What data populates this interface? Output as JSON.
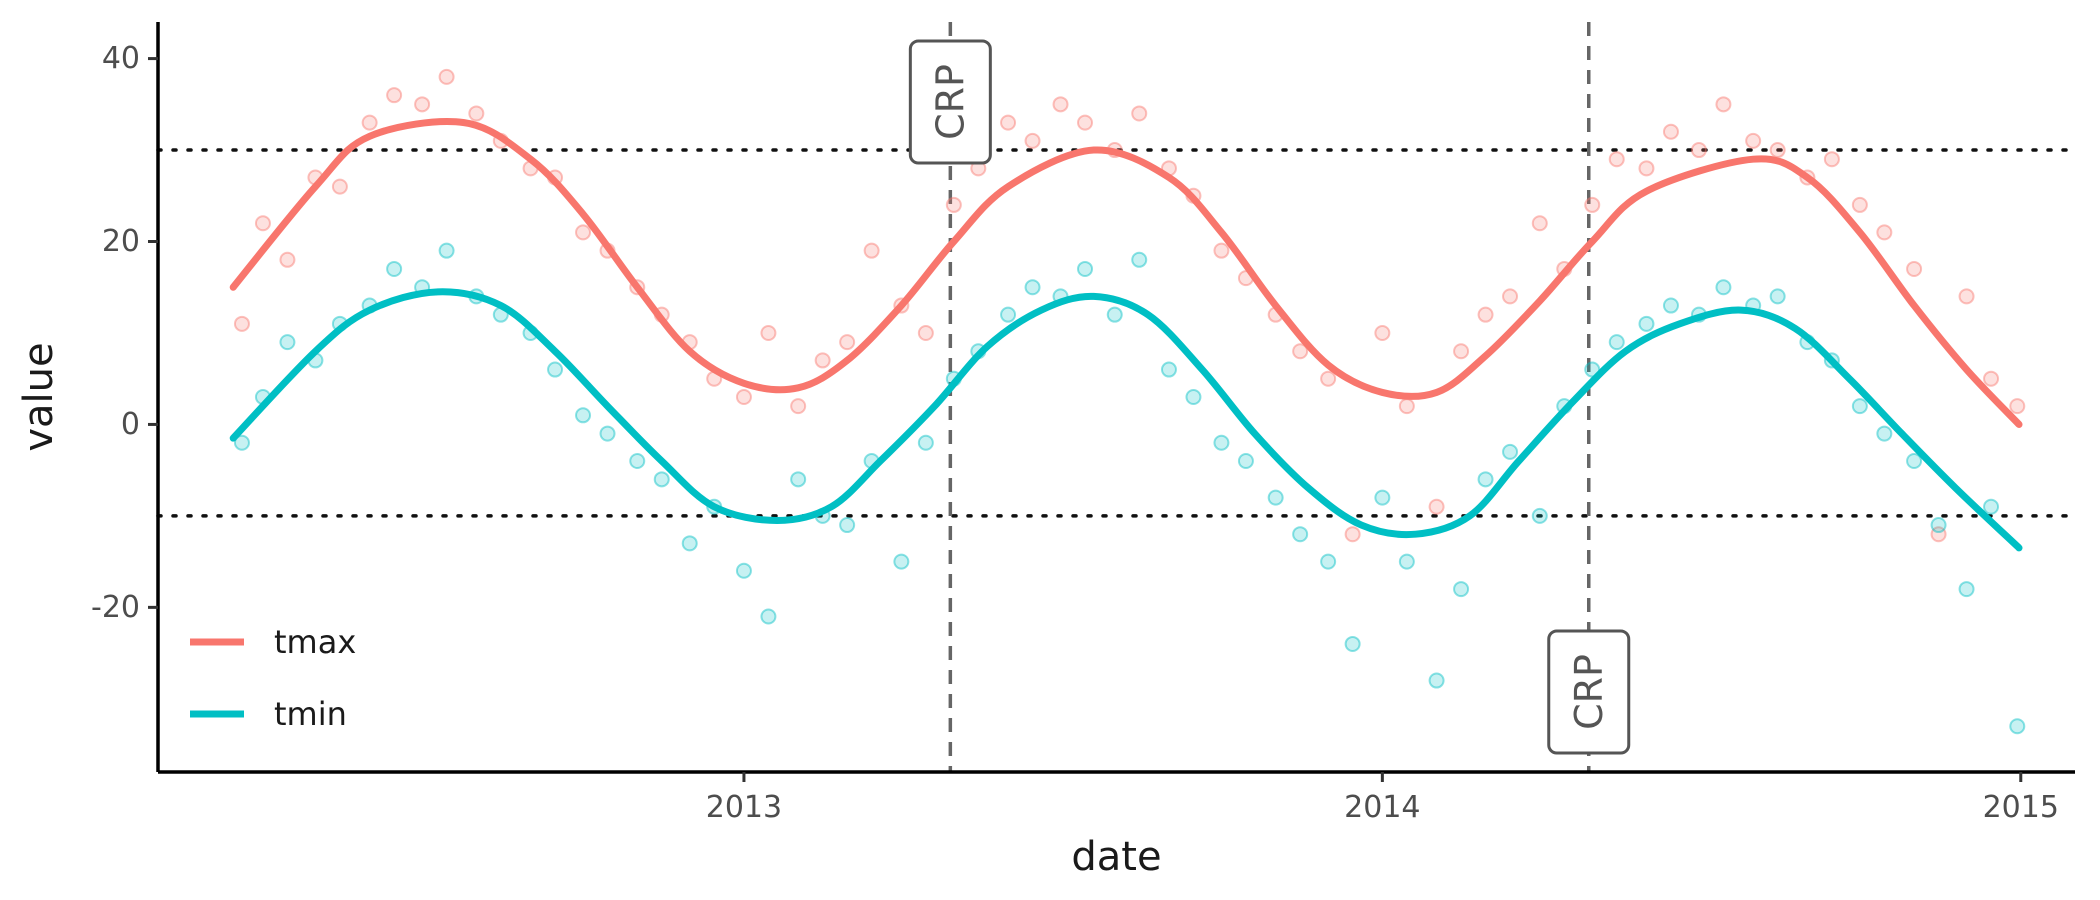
{
  "chart_data": {
    "type": "scatter",
    "title": "",
    "xlabel": "date",
    "ylabel": "value",
    "xlim": [
      "2012-02-01",
      "2015-02-01"
    ],
    "ylim": [
      -38,
      44
    ],
    "x_ticks": [
      {
        "date": "2013-01-01",
        "label": "2013"
      },
      {
        "date": "2014-01-01",
        "label": "2014"
      },
      {
        "date": "2015-01-01",
        "label": "2015"
      }
    ],
    "y_ticks": [
      {
        "value": 40,
        "label": "40"
      },
      {
        "value": 20,
        "label": "20"
      },
      {
        "value": 0,
        "label": "0"
      },
      {
        "value": -20,
        "label": "-20"
      }
    ],
    "grid": false,
    "legend_position": "bottom-left",
    "hlines": [
      {
        "value": 30,
        "style": "dotted"
      },
      {
        "value": -10,
        "style": "dotted"
      }
    ],
    "vlines": [
      {
        "date": "2013-04-29",
        "label": "CRP",
        "label_position": "top"
      },
      {
        "date": "2014-04-29",
        "label": "CRP",
        "label_position": "bottom"
      }
    ],
    "series": [
      {
        "name": "tmax",
        "color": "#F8766D",
        "trend": [
          [
            "2012-03-15",
            15
          ],
          [
            "2012-05-01",
            26
          ],
          [
            "2012-06-01",
            31.5
          ],
          [
            "2012-07-25",
            33
          ],
          [
            "2012-09-01",
            29
          ],
          [
            "2012-10-01",
            23
          ],
          [
            "2012-11-01",
            15
          ],
          [
            "2012-12-01",
            8
          ],
          [
            "2013-01-01",
            4.5
          ],
          [
            "2013-02-01",
            4
          ],
          [
            "2013-03-01",
            7
          ],
          [
            "2013-04-01",
            13
          ],
          [
            "2013-05-01",
            20
          ],
          [
            "2013-06-01",
            26
          ],
          [
            "2013-07-20",
            30
          ],
          [
            "2013-09-01",
            27
          ],
          [
            "2013-10-01",
            21
          ],
          [
            "2013-11-01",
            13
          ],
          [
            "2013-12-01",
            6.5
          ],
          [
            "2014-01-01",
            3.5
          ],
          [
            "2014-02-01",
            3.5
          ],
          [
            "2014-03-01",
            7.5
          ],
          [
            "2014-04-01",
            13.5
          ],
          [
            "2014-05-01",
            20
          ],
          [
            "2014-06-01",
            25.5
          ],
          [
            "2014-08-01",
            29
          ],
          [
            "2014-09-01",
            27
          ],
          [
            "2014-10-01",
            21
          ],
          [
            "2014-11-01",
            13
          ],
          [
            "2014-12-01",
            6
          ],
          [
            "2014-12-31",
            0
          ]
        ],
        "points": [
          [
            "2012-03-20",
            11
          ],
          [
            "2012-04-01",
            22
          ],
          [
            "2012-04-15",
            18
          ],
          [
            "2012-05-01",
            27
          ],
          [
            "2012-05-15",
            26
          ],
          [
            "2012-06-01",
            33
          ],
          [
            "2012-06-15",
            36
          ],
          [
            "2012-07-01",
            35
          ],
          [
            "2012-07-15",
            38
          ],
          [
            "2012-08-01",
            34
          ],
          [
            "2012-08-15",
            31
          ],
          [
            "2012-09-01",
            28
          ],
          [
            "2012-09-15",
            27
          ],
          [
            "2012-10-01",
            21
          ],
          [
            "2012-10-15",
            19
          ],
          [
            "2012-11-01",
            15
          ],
          [
            "2012-11-15",
            12
          ],
          [
            "2012-12-01",
            9
          ],
          [
            "2012-12-15",
            5
          ],
          [
            "2013-01-01",
            3
          ],
          [
            "2013-01-15",
            10
          ],
          [
            "2013-02-01",
            2
          ],
          [
            "2013-02-15",
            7
          ],
          [
            "2013-03-01",
            9
          ],
          [
            "2013-03-15",
            19
          ],
          [
            "2013-04-01",
            13
          ],
          [
            "2013-04-15",
            10
          ],
          [
            "2013-05-01",
            24
          ],
          [
            "2013-05-15",
            28
          ],
          [
            "2013-06-01",
            33
          ],
          [
            "2013-06-15",
            31
          ],
          [
            "2013-07-01",
            35
          ],
          [
            "2013-07-15",
            33
          ],
          [
            "2013-08-01",
            30
          ],
          [
            "2013-08-15",
            34
          ],
          [
            "2013-09-01",
            28
          ],
          [
            "2013-09-15",
            25
          ],
          [
            "2013-10-01",
            19
          ],
          [
            "2013-10-15",
            16
          ],
          [
            "2013-11-01",
            12
          ],
          [
            "2013-11-15",
            8
          ],
          [
            "2013-12-01",
            5
          ],
          [
            "2013-12-15",
            -12
          ],
          [
            "2014-01-01",
            10
          ],
          [
            "2014-01-15",
            2
          ],
          [
            "2014-02-01",
            -9
          ],
          [
            "2014-02-15",
            8
          ],
          [
            "2014-03-01",
            12
          ],
          [
            "2014-03-15",
            14
          ],
          [
            "2014-04-01",
            22
          ],
          [
            "2014-04-15",
            17
          ],
          [
            "2014-05-01",
            24
          ],
          [
            "2014-05-15",
            29
          ],
          [
            "2014-06-01",
            28
          ],
          [
            "2014-06-15",
            32
          ],
          [
            "2014-07-01",
            30
          ],
          [
            "2014-07-15",
            35
          ],
          [
            "2014-08-01",
            31
          ],
          [
            "2014-08-15",
            30
          ],
          [
            "2014-09-01",
            27
          ],
          [
            "2014-09-15",
            29
          ],
          [
            "2014-10-01",
            24
          ],
          [
            "2014-10-15",
            21
          ],
          [
            "2014-11-01",
            17
          ],
          [
            "2014-11-15",
            -12
          ],
          [
            "2014-12-01",
            14
          ],
          [
            "2014-12-15",
            5
          ],
          [
            "2014-12-30",
            2
          ]
        ]
      },
      {
        "name": "tmin",
        "color": "#00BFC4",
        "trend": [
          [
            "2012-03-15",
            -1.5
          ],
          [
            "2012-05-01",
            8
          ],
          [
            "2012-06-01",
            12.5
          ],
          [
            "2012-07-10",
            14.5
          ],
          [
            "2012-08-15",
            13
          ],
          [
            "2012-09-15",
            8
          ],
          [
            "2012-10-15",
            2
          ],
          [
            "2012-11-15",
            -4
          ],
          [
            "2012-12-15",
            -9
          ],
          [
            "2013-01-20",
            -10.5
          ],
          [
            "2013-02-20",
            -9
          ],
          [
            "2013-03-20",
            -4
          ],
          [
            "2013-04-20",
            2
          ],
          [
            "2013-05-20",
            8.5
          ],
          [
            "2013-06-20",
            12.5
          ],
          [
            "2013-07-20",
            14
          ],
          [
            "2013-08-20",
            12
          ],
          [
            "2013-09-20",
            6
          ],
          [
            "2013-10-20",
            -1
          ],
          [
            "2013-11-20",
            -7
          ],
          [
            "2013-12-20",
            -11
          ],
          [
            "2014-01-20",
            -12
          ],
          [
            "2014-02-20",
            -10
          ],
          [
            "2014-03-20",
            -4
          ],
          [
            "2014-04-20",
            2.5
          ],
          [
            "2014-05-20",
            8
          ],
          [
            "2014-06-20",
            11
          ],
          [
            "2014-07-25",
            12.5
          ],
          [
            "2014-08-25",
            10.5
          ],
          [
            "2014-09-25",
            5
          ],
          [
            "2014-10-25",
            -1
          ],
          [
            "2014-11-25",
            -7
          ],
          [
            "2014-12-31",
            -13.5
          ]
        ],
        "points": [
          [
            "2012-03-20",
            -2
          ],
          [
            "2012-04-01",
            3
          ],
          [
            "2012-04-15",
            9
          ],
          [
            "2012-05-01",
            7
          ],
          [
            "2012-05-15",
            11
          ],
          [
            "2012-06-01",
            13
          ],
          [
            "2012-06-15",
            17
          ],
          [
            "2012-07-01",
            15
          ],
          [
            "2012-07-15",
            19
          ],
          [
            "2012-08-01",
            14
          ],
          [
            "2012-08-15",
            12
          ],
          [
            "2012-09-01",
            10
          ],
          [
            "2012-09-15",
            6
          ],
          [
            "2012-10-01",
            1
          ],
          [
            "2012-10-15",
            -1
          ],
          [
            "2012-11-01",
            -4
          ],
          [
            "2012-11-15",
            -6
          ],
          [
            "2012-12-01",
            -13
          ],
          [
            "2012-12-15",
            -9
          ],
          [
            "2013-01-01",
            -16
          ],
          [
            "2013-01-15",
            -21
          ],
          [
            "2013-02-01",
            -6
          ],
          [
            "2013-02-15",
            -10
          ],
          [
            "2013-03-01",
            -11
          ],
          [
            "2013-03-15",
            -4
          ],
          [
            "2013-04-01",
            -15
          ],
          [
            "2013-04-15",
            -2
          ],
          [
            "2013-05-01",
            5
          ],
          [
            "2013-05-15",
            8
          ],
          [
            "2013-06-01",
            12
          ],
          [
            "2013-06-15",
            15
          ],
          [
            "2013-07-01",
            14
          ],
          [
            "2013-07-15",
            17
          ],
          [
            "2013-08-01",
            12
          ],
          [
            "2013-08-15",
            18
          ],
          [
            "2013-09-01",
            6
          ],
          [
            "2013-09-15",
            3
          ],
          [
            "2013-10-01",
            -2
          ],
          [
            "2013-10-15",
            -4
          ],
          [
            "2013-11-01",
            -8
          ],
          [
            "2013-11-15",
            -12
          ],
          [
            "2013-12-01",
            -15
          ],
          [
            "2013-12-15",
            -24
          ],
          [
            "2014-01-01",
            -8
          ],
          [
            "2014-01-15",
            -15
          ],
          [
            "2014-02-01",
            -28
          ],
          [
            "2014-02-15",
            -18
          ],
          [
            "2014-03-01",
            -6
          ],
          [
            "2014-03-15",
            -3
          ],
          [
            "2014-04-01",
            -10
          ],
          [
            "2014-04-15",
            2
          ],
          [
            "2014-05-01",
            6
          ],
          [
            "2014-05-15",
            9
          ],
          [
            "2014-06-01",
            11
          ],
          [
            "2014-06-15",
            13
          ],
          [
            "2014-07-01",
            12
          ],
          [
            "2014-07-15",
            15
          ],
          [
            "2014-08-01",
            13
          ],
          [
            "2014-08-15",
            14
          ],
          [
            "2014-09-01",
            9
          ],
          [
            "2014-09-15",
            7
          ],
          [
            "2014-10-01",
            2
          ],
          [
            "2014-10-15",
            -1
          ],
          [
            "2014-11-01",
            -4
          ],
          [
            "2014-11-15",
            -11
          ],
          [
            "2014-12-01",
            -18
          ],
          [
            "2014-12-15",
            -9
          ],
          [
            "2014-12-30",
            -33
          ]
        ]
      }
    ]
  }
}
